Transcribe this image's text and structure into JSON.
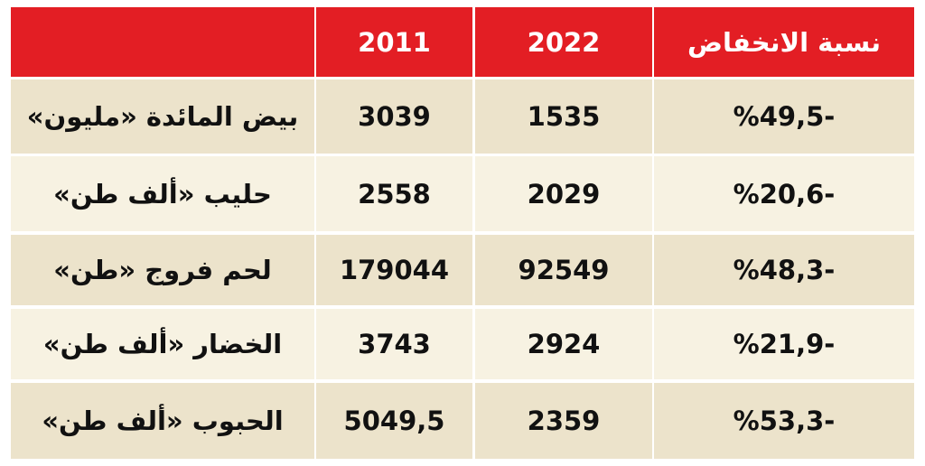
{
  "table": {
    "header": [
      "2011",
      "2022",
      "نسبة الانخفاض"
    ],
    "rows": [
      [
        "بيض المائدة «مليون»",
        "3039",
        "1535",
        "%49,5-"
      ],
      [
        "حليب «ألف طن»",
        "2558",
        "2029",
        "%20,6-"
      ],
      [
        "لحم فروج «طن»",
        "179044",
        "92549",
        "%48,3-"
      ],
      [
        "الخضار «ألف طن»",
        "3743",
        "2924",
        "%21,9-"
      ],
      [
        "الحبوب «ألف طن»",
        "5049,5",
        "2359",
        "%53,3-"
      ]
    ]
  }
}
